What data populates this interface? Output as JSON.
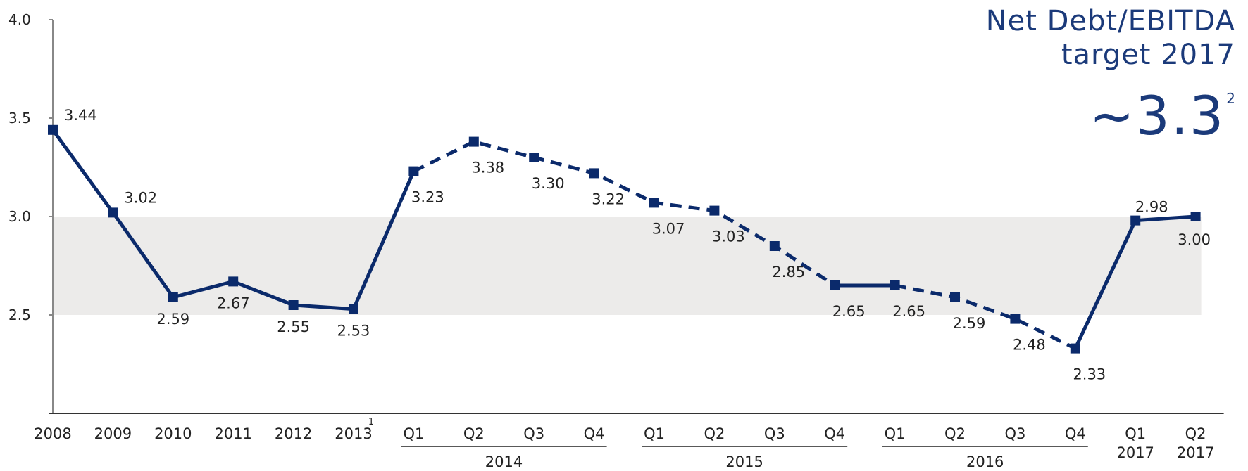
{
  "title": {
    "line1": "Net Debt/EBITDA",
    "line2": "target 2017",
    "target": "~3.3",
    "target_footnote": "2"
  },
  "colors": {
    "series": "#0b2a6b",
    "band": "#ecebea",
    "axis": "#888888",
    "title": "#1b3a7a"
  },
  "chart_data": {
    "type": "line",
    "yticks": [
      "4.0",
      "3.5",
      "3.0",
      "2.5"
    ],
    "ylim": [
      2.0,
      4.0
    ],
    "grid": false,
    "band": [
      2.5,
      3.0
    ],
    "categories": [
      {
        "label": "2008",
        "value": 3.44,
        "value_label": "3.44",
        "label_pos": "right"
      },
      {
        "label": "2009",
        "value": 3.02,
        "value_label": "3.02",
        "label_pos": "right"
      },
      {
        "label": "2010",
        "value": 2.59,
        "value_label": "2.59",
        "label_pos": "below"
      },
      {
        "label": "2011",
        "value": 2.67,
        "value_label": "2.67",
        "label_pos": "below"
      },
      {
        "label": "2012",
        "value": 2.55,
        "value_label": "2.55",
        "label_pos": "below"
      },
      {
        "label": "2013",
        "value": 2.53,
        "value_label": "2.53",
        "label_pos": "below",
        "footnote": "1"
      },
      {
        "label": "Q1",
        "value": 3.23,
        "value_label": "3.23",
        "label_pos": "below"
      },
      {
        "label": "Q2",
        "value": 3.38,
        "value_label": "3.38",
        "label_pos": "below"
      },
      {
        "label": "Q3",
        "value": 3.3,
        "value_label": "3.30",
        "label_pos": "below"
      },
      {
        "label": "Q4",
        "value": 3.22,
        "value_label": "3.22",
        "label_pos": "below"
      },
      {
        "label": "Q1",
        "value": 3.07,
        "value_label": "3.07",
        "label_pos": "below"
      },
      {
        "label": "Q2",
        "value": 3.03,
        "value_label": "3.03",
        "label_pos": "below"
      },
      {
        "label": "Q3",
        "value": 2.85,
        "value_label": "2.85",
        "label_pos": "below"
      },
      {
        "label": "Q4",
        "value": 2.65,
        "value_label": "2.65",
        "label_pos": "below"
      },
      {
        "label": "Q1",
        "value": 2.65,
        "value_label": "2.65",
        "label_pos": "below"
      },
      {
        "label": "Q2",
        "value": 2.59,
        "value_label": "2.59",
        "label_pos": "below"
      },
      {
        "label": "Q3",
        "value": 2.48,
        "value_label": "2.48",
        "label_pos": "below"
      },
      {
        "label": "Q4",
        "value": 2.33,
        "value_label": "2.33",
        "label_pos": "below"
      },
      {
        "label": "Q1",
        "label2": "2017",
        "value": 2.98,
        "value_label": "2.98",
        "label_pos": "above"
      },
      {
        "label": "Q2",
        "label2": "2017",
        "value": 3.0,
        "value_label": "3.00",
        "label_pos": "below"
      }
    ],
    "year_groups": [
      {
        "label": "2014",
        "from": 6,
        "to": 9
      },
      {
        "label": "2015",
        "from": 10,
        "to": 13
      },
      {
        "label": "2016",
        "from": 14,
        "to": 17
      }
    ],
    "segments": [
      {
        "from": 0,
        "to": 6,
        "style": "solid"
      },
      {
        "from": 6,
        "to": 13,
        "style": "dashed"
      },
      {
        "from": 13,
        "to": 14,
        "style": "solid"
      },
      {
        "from": 14,
        "to": 17,
        "style": "dashed"
      },
      {
        "from": 17,
        "to": 19,
        "style": "solid"
      }
    ]
  }
}
